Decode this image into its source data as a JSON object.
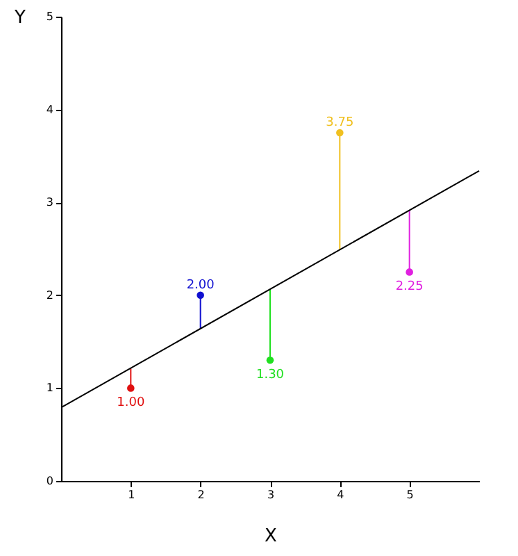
{
  "chart_data": {
    "type": "scatter",
    "xlabel": "X",
    "ylabel": "Y",
    "xlim": [
      0,
      6
    ],
    "ylim": [
      0,
      5
    ],
    "xticks": [
      1,
      2,
      3,
      4,
      5
    ],
    "yticks": [
      0,
      1,
      2,
      3,
      4,
      5
    ],
    "series": [
      {
        "marker": "circle",
        "x": [
          1,
          2,
          3,
          4,
          5
        ],
        "values": [
          1.0,
          2.0,
          1.3,
          3.75,
          2.25
        ],
        "colors": [
          "#e01010",
          "#1010d0",
          "#20e020",
          "#f0c020",
          "#e020e0"
        ],
        "errors": [
          [
            1.0,
            1.21
          ],
          [
            1.64,
            2.0
          ],
          [
            1.3,
            2.06
          ],
          [
            2.49,
            3.75
          ],
          [
            2.25,
            2.91
          ]
        ],
        "value_labels": [
          "1.00",
          "2.00",
          "1.30",
          "3.75",
          "2.25"
        ]
      },
      {
        "type": "line",
        "x": [
          0,
          6
        ],
        "values": [
          0.79,
          3.34
        ],
        "color": "#000000"
      }
    ]
  }
}
